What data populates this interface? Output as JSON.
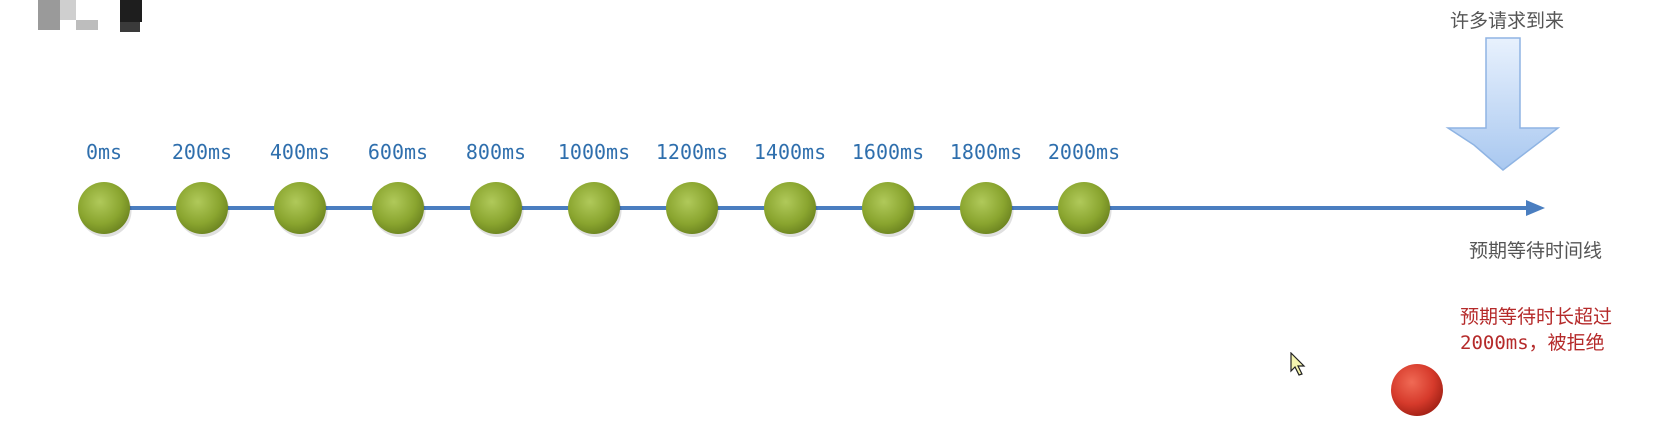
{
  "chart_data": {
    "type": "timeline",
    "unit": "ms",
    "ticks": [
      "0ms",
      "200ms",
      "400ms",
      "600ms",
      "800ms",
      "1000ms",
      "1200ms",
      "1400ms",
      "1600ms",
      "1800ms",
      "2000ms"
    ],
    "values": [
      0,
      200,
      400,
      600,
      800,
      1000,
      1200,
      1400,
      1600,
      1800,
      2000
    ]
  },
  "labels": {
    "incoming": "许多请求到来",
    "axis": "预期等待时间线",
    "reject_line1": "预期等待时长超过",
    "reject_line2": "2000ms，被拒绝"
  },
  "colors": {
    "axis": "#4a7ec0",
    "slot": "#8aa52f",
    "rejected": "#d63a2b",
    "arrow": "#b9d4f5",
    "tick_text": "#2f6fad",
    "reject_text": "#b52a2a"
  }
}
